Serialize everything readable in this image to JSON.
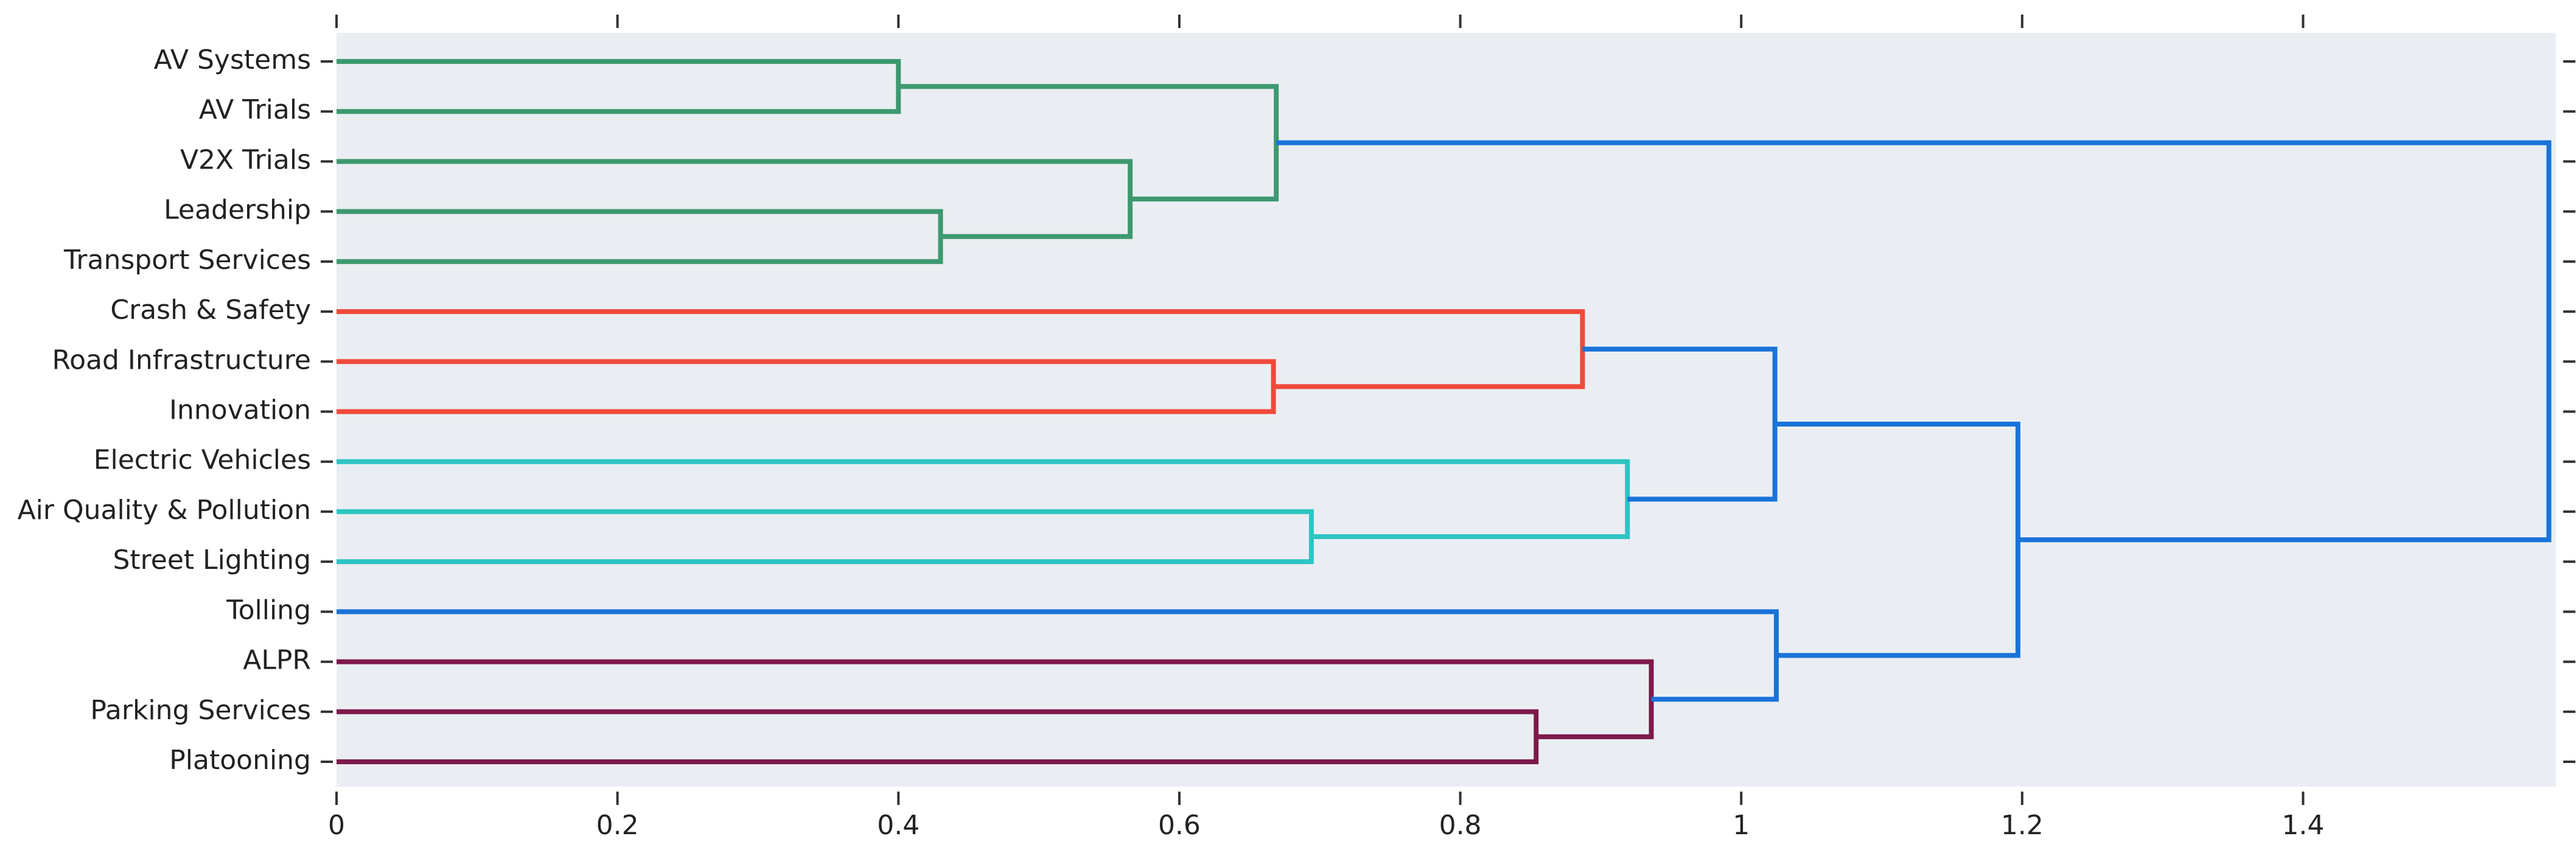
{
  "chart_data": {
    "type": "dendrogram",
    "leaves": [
      "AV Systems",
      "AV Trials",
      "V2X Trials",
      "Leadership",
      "Transport Services",
      "Crash & Safety",
      "Road Infrastructure",
      "Innovation",
      "Electric Vehicles",
      "Air Quality & Pollution",
      "Street Lighting",
      "Tolling",
      "ALPR",
      "Parking Services",
      "Platooning"
    ],
    "merges": [
      {
        "children": [
          0,
          1
        ],
        "height": 0.4,
        "color": "#3d9970"
      },
      {
        "children": [
          3,
          4
        ],
        "height": 0.43,
        "color": "#3d9970"
      },
      {
        "children": [
          6,
          7
        ],
        "height": 0.667,
        "color": "#f04a3a"
      },
      {
        "children": [
          9,
          10
        ],
        "height": 0.694,
        "color": "#2ec4c4"
      },
      {
        "children": [
          2,
          16
        ],
        "height": 0.565,
        "color": "#3d9970"
      },
      {
        "children": [
          15,
          19
        ],
        "height": 0.669,
        "color": "#3d9970"
      },
      {
        "children": [
          13,
          14
        ],
        "height": 0.854,
        "color": "#7d1a4a"
      },
      {
        "children": [
          5,
          17
        ],
        "height": 0.887,
        "color": "#f04a3a"
      },
      {
        "children": [
          8,
          18
        ],
        "height": 0.919,
        "color": "#2ec4c4"
      },
      {
        "children": [
          12,
          21
        ],
        "height": 0.936,
        "color": "#7d1a4a"
      },
      {
        "children": [
          22,
          23
        ],
        "height": 1.024,
        "color": "#1a73d9"
      },
      {
        "children": [
          11,
          24
        ],
        "height": 1.025,
        "color": "#1a73d9"
      },
      {
        "children": [
          25,
          26
        ],
        "height": 1.197,
        "color": "#1a73d9"
      },
      {
        "children": [
          20,
          27
        ],
        "height": 1.575,
        "color": "#1a73d9"
      }
    ],
    "xlim": [
      0,
      1.58
    ],
    "xticks": [
      0,
      0.2,
      0.4,
      0.6,
      0.8,
      1,
      1.2,
      1.4
    ]
  }
}
